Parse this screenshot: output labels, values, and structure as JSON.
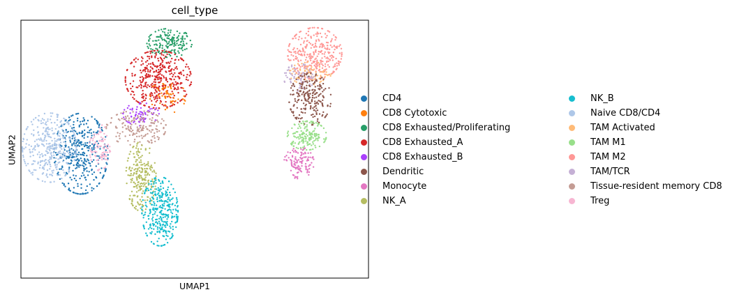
{
  "chart_data": {
    "type": "scatter",
    "title": "cell_type",
    "xlabel": "UMAP1",
    "ylabel": "UMAP2",
    "grid": false,
    "ticks": "hidden",
    "legend_position": "right",
    "xlim": [
      -6,
      16
    ],
    "ylim": [
      -4,
      13
    ],
    "categories": [
      {
        "name": "CD4",
        "color": "#1f77b4"
      },
      {
        "name": "CD8 Cytotoxic",
        "color": "#ff7f0e"
      },
      {
        "name": "CD8 Exhausted/Proliferating",
        "color": "#279e68"
      },
      {
        "name": "CD8 Exhausted_A",
        "color": "#d62728"
      },
      {
        "name": "CD8 Exhausted_B",
        "color": "#aa40fc"
      },
      {
        "name": "Dendritic",
        "color": "#8c564b"
      },
      {
        "name": "Monocyte",
        "color": "#e377c2"
      },
      {
        "name": "NK_A",
        "color": "#b5bd61"
      },
      {
        "name": "NK_B",
        "color": "#17becf"
      },
      {
        "name": "Naive CD8/CD4",
        "color": "#aec7e8"
      },
      {
        "name": "TAM Activated",
        "color": "#ffbb78"
      },
      {
        "name": "TAM M1",
        "color": "#98df8a"
      },
      {
        "name": "TAM M2",
        "color": "#ff9896"
      },
      {
        "name": "TAM/TCR",
        "color": "#c5b0d5"
      },
      {
        "name": "Tissue-resident memory CD8",
        "color": "#c49c94"
      },
      {
        "name": "Treg",
        "color": "#f7b6d2"
      }
    ],
    "clusters": [
      {
        "category": "CD8 Exhausted/Proliferating",
        "cx": 3.4,
        "cy": 11.5,
        "sx": 0.75,
        "sy": 0.5,
        "n": 170
      },
      {
        "category": "CD8 Exhausted_A",
        "cx": 2.7,
        "cy": 9.1,
        "sx": 1.1,
        "sy": 1.0,
        "n": 420
      },
      {
        "category": "CD8 Cytotoxic",
        "cx": 3.3,
        "cy": 8.0,
        "sx": 0.6,
        "sy": 0.6,
        "n": 60
      },
      {
        "category": "CD8 Exhausted_B",
        "cx": 1.6,
        "cy": 6.8,
        "sx": 0.6,
        "sy": 0.4,
        "n": 70
      },
      {
        "category": "Tissue-resident memory CD8",
        "cx": 1.3,
        "cy": 5.9,
        "sx": 1.0,
        "sy": 0.6,
        "n": 170
      },
      {
        "category": "CD4",
        "cx": -2.2,
        "cy": 4.2,
        "sx": 0.9,
        "sy": 1.4,
        "n": 380
      },
      {
        "category": "Naive CD8/CD4",
        "cx": -4.2,
        "cy": 4.6,
        "sx": 0.9,
        "sy": 1.2,
        "n": 360
      },
      {
        "category": "Treg",
        "cx": -1.0,
        "cy": 4.6,
        "sx": 0.35,
        "sy": 0.8,
        "n": 90
      },
      {
        "category": "NK_A",
        "cx": 1.6,
        "cy": 2.7,
        "sx": 0.5,
        "sy": 1.2,
        "n": 230
      },
      {
        "category": "NK_B",
        "cx": 2.8,
        "cy": 0.4,
        "sx": 0.6,
        "sy": 1.2,
        "n": 330
      },
      {
        "category": "TAM M2",
        "cx": 12.6,
        "cy": 10.8,
        "sx": 0.9,
        "sy": 0.9,
        "n": 330
      },
      {
        "category": "TAM Activated",
        "cx": 12.3,
        "cy": 9.5,
        "sx": 0.7,
        "sy": 0.4,
        "n": 80
      },
      {
        "category": "TAM/TCR",
        "cx": 11.6,
        "cy": 9.2,
        "sx": 0.5,
        "sy": 0.5,
        "n": 70
      },
      {
        "category": "Dendritic",
        "cx": 12.3,
        "cy": 7.8,
        "sx": 0.7,
        "sy": 0.9,
        "n": 230
      },
      {
        "category": "TAM M1",
        "cx": 12.1,
        "cy": 5.4,
        "sx": 0.65,
        "sy": 0.5,
        "n": 170
      },
      {
        "category": "Monocyte",
        "cx": 11.6,
        "cy": 3.6,
        "sx": 0.5,
        "sy": 0.55,
        "n": 120
      }
    ]
  }
}
